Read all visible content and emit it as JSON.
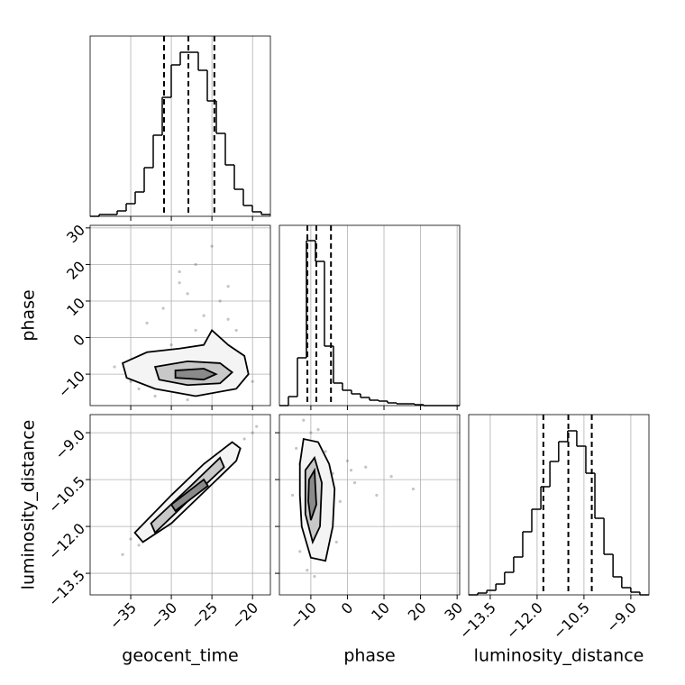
{
  "chart_data": {
    "type": "corner",
    "grid": true,
    "point_color": "#555555",
    "contour_fills": [
      "#f4f4f4",
      "#c8c8c8",
      "#8a8a8a"
    ],
    "axes": [
      {
        "label": "geocent_time",
        "lim": [
          -40,
          -17.8
        ],
        "ticks": [
          {
            "value": -35,
            "label": "−35"
          },
          {
            "value": -30,
            "label": "−30"
          },
          {
            "value": -25,
            "label": "−25"
          },
          {
            "value": -20,
            "label": "−20"
          }
        ]
      },
      {
        "label": "phase",
        "lim": [
          -18.6,
          30.7
        ],
        "ticks": [
          {
            "value": -10,
            "label": "−10"
          },
          0,
          10,
          20,
          30
        ]
      },
      {
        "label": "luminosity_distance",
        "lim": [
          -14.19,
          -8.42
        ],
        "ticks": [
          {
            "value": -13.5,
            "label": "−13.5"
          },
          {
            "value": -12.0,
            "label": "−12.0"
          },
          {
            "value": -10.5,
            "label": "−10.5"
          },
          {
            "value": -9.0,
            "label": "−9.0"
          }
        ]
      }
    ],
    "histograms": [
      {
        "bins": [
          -40,
          -38.89,
          -37.78,
          -36.67,
          -35.56,
          -34.45,
          -33.34,
          -32.23,
          -31.12,
          -30.01,
          -28.9,
          -27.79,
          -26.68,
          -25.57,
          -24.46,
          -23.35,
          -22.24,
          -21.13,
          -20.02,
          -18.91,
          -17.8
        ],
        "counts": [
          0,
          2,
          2,
          6,
          14,
          27,
          54,
          90,
          132,
          168,
          182,
          182,
          162,
          128,
          92,
          57,
          30,
          12,
          5,
          2
        ],
        "ylim": [
          0,
          200
        ],
        "quantiles": [
          -30.9,
          -27.9,
          -24.7
        ]
      },
      {
        "bins": [
          -18.6,
          -16.14,
          -13.67,
          -11.21,
          -8.74,
          -6.28,
          -3.81,
          -1.35,
          1.12,
          3.59,
          6.05,
          8.52,
          10.98,
          13.45,
          15.91,
          18.38,
          20.84,
          23.31,
          25.77,
          28.24,
          30.7
        ],
        "counts": [
          0,
          10,
          53,
          183,
          160,
          66,
          25,
          17,
          13,
          9,
          6,
          5,
          3,
          2,
          2,
          1,
          0,
          0,
          0,
          0
        ],
        "ylim": [
          0,
          200
        ],
        "quantiles": [
          -10.95,
          -8.5,
          -4.5
        ]
      },
      {
        "bins": [
          -14.19,
          -13.9,
          -13.61,
          -13.32,
          -13.04,
          -12.75,
          -12.46,
          -12.17,
          -11.88,
          -11.59,
          -11.31,
          -11.02,
          -10.73,
          -10.44,
          -10.15,
          -9.86,
          -9.57,
          -9.29,
          -9.0,
          -8.71,
          -8.42
        ],
        "counts": [
          0,
          2,
          5,
          12,
          25,
          42,
          70,
          95,
          120,
          148,
          170,
          182,
          165,
          135,
          85,
          45,
          20,
          8,
          3,
          0
        ],
        "ylim": [
          0,
          200
        ],
        "quantiles": [
          -11.8,
          -11.0,
          -10.25
        ]
      }
    ],
    "pairs": [
      {
        "points": {
          "x": [
            -37,
            -35,
            -33,
            -31,
            -30,
            -29,
            -28,
            -27,
            -26,
            -25,
            -24,
            -23,
            -22,
            -21,
            -34,
            -32,
            -28,
            -26,
            -24,
            -29,
            -27,
            -25,
            -30,
            -23,
            -20
          ],
          "y": [
            -8,
            -12,
            4,
            8,
            -2,
            15,
            12,
            20,
            6,
            25,
            10,
            14,
            2,
            -6,
            -14,
            -16,
            -17,
            -15,
            -14,
            18,
            2,
            -1,
            -4,
            5,
            -12
          ]
        },
        "contours": [
          {
            "x": [
              -36,
              -33,
              -29,
              -26,
              -25,
              -23,
              -21,
              -20.5,
              -22,
              -27,
              -32,
              -35.5
            ],
            "y": [
              -7,
              -4,
              -3,
              -2,
              2,
              -2,
              -5,
              -10,
              -14,
              -16,
              -14,
              -11
            ]
          },
          {
            "x": [
              -32,
              -28,
              -24,
              -22.5,
              -24,
              -28,
              -31.5
            ],
            "y": [
              -8,
              -6.5,
              -7,
              -9.5,
              -12.5,
              -13,
              -11.5
            ]
          },
          {
            "x": [
              -29.5,
              -26,
              -24.5,
              -26,
              -29.5
            ],
            "y": [
              -9,
              -8.5,
              -10,
              -11.5,
              -11
            ]
          }
        ]
      },
      {
        "points": {
          "x": [
            -36,
            -35,
            -34,
            -33,
            -32,
            -31,
            -30,
            -29,
            -28,
            -27,
            -26,
            -25,
            -24,
            -23,
            -22,
            -21,
            -20,
            -34,
            -30,
            -26,
            -22,
            -32,
            -28,
            -24,
            -19.5
          ],
          "y": [
            -12.9,
            -12.4,
            -12.6,
            -11.9,
            -12.1,
            -11.5,
            -11.6,
            -11.0,
            -11.2,
            -10.5,
            -10.7,
            -10.0,
            -10.3,
            -9.6,
            -9.8,
            -9.2,
            -9.0,
            -12.1,
            -11.2,
            -10.8,
            -9.4,
            -11.7,
            -10.6,
            -9.8,
            -8.8
          ]
        },
        "contours": [
          {
            "x": [
              -34.5,
              -30,
              -26,
              -22.5,
              -21.5,
              -22,
              -26,
              -30,
              -33.5
            ],
            "y": [
              -12.2,
              -11.0,
              -10.0,
              -9.3,
              -9.5,
              -9.9,
              -10.9,
              -11.9,
              -12.5
            ]
          },
          {
            "x": [
              -32.5,
              -28,
              -24,
              -23.5,
              -28,
              -32
            ],
            "y": [
              -11.9,
              -10.8,
              -9.8,
              -10.1,
              -11.2,
              -12.2
            ]
          },
          {
            "x": [
              -30,
              -26,
              -25.5,
              -29.5
            ],
            "y": [
              -11.3,
              -10.5,
              -10.7,
              -11.5
            ]
          }
        ]
      },
      {
        "points": {
          "x": [
            -15,
            -14,
            -13,
            -12,
            -11,
            -10,
            -9,
            -8,
            -7,
            -6,
            -5,
            -4,
            -2,
            0,
            2,
            5,
            8,
            12,
            18,
            -9,
            -11,
            -7,
            -3,
            1,
            -13
          ],
          "y": [
            -11,
            -9.5,
            -12.8,
            -8.6,
            -13.4,
            -9.0,
            -13.6,
            -8.9,
            -12.9,
            -9.6,
            -11.8,
            -10.3,
            -11.2,
            -9.9,
            -10.6,
            -10.1,
            -11.0,
            -10.4,
            -10.8,
            -12.3,
            -9.8,
            -11.6,
            -12.5,
            -10.2,
            -10.0
          ]
        },
        "contours": [
          {
            "x": [
              -13,
              -12,
              -8,
              -5,
              -3.5,
              -4,
              -6,
              -10,
              -12.5,
              -13
            ],
            "y": [
              -10,
              -9.2,
              -9.3,
              -10,
              -10.8,
              -12.0,
              -13.1,
              -13,
              -12,
              -11
            ]
          },
          {
            "x": [
              -11.5,
              -9,
              -7,
              -7.5,
              -9.5,
              -11.5
            ],
            "y": [
              -10.2,
              -9.8,
              -10.6,
              -12.0,
              -12.5,
              -11.6
            ]
          },
          {
            "x": [
              -10.5,
              -9,
              -8.5,
              -10,
              -10.7
            ],
            "y": [
              -10.5,
              -10.2,
              -11.3,
              -11.8,
              -11.2
            ]
          }
        ]
      }
    ]
  }
}
